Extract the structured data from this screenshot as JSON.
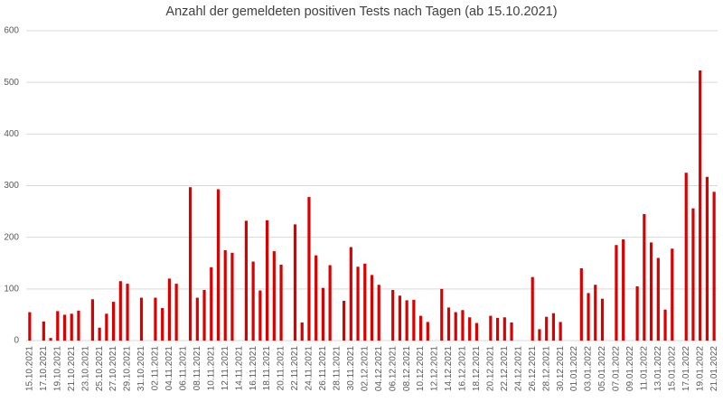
{
  "chart_data": {
    "type": "bar",
    "title": "Anzahl der gemeldeten positiven Tests nach Tagen (ab 15.10.2021)",
    "categories": [
      "15.10.2021",
      null,
      "17.10.2021",
      null,
      "19.10.2021",
      null,
      "21.10.2021",
      null,
      "23.10.2021",
      null,
      "25.10.2021",
      null,
      "27.10.2021",
      null,
      "29.10.2021",
      null,
      "31.10.2021",
      null,
      "02.11.2021",
      null,
      "04.11.2021",
      null,
      "06.11.2021",
      null,
      "08.11.2021",
      null,
      "10.11.2021",
      null,
      "12.11.2021",
      null,
      "14.11.2021",
      null,
      "16.11.2021",
      null,
      "18.11.2021",
      null,
      "20.11.2021",
      null,
      "22.11.2021",
      null,
      "24.11.2021",
      null,
      "26.11.2021",
      null,
      "28.11.2021",
      null,
      "30.11.2021",
      null,
      "02.12.2021",
      null,
      "04.12.2021",
      null,
      "06.12.2021",
      null,
      "08.12.2021",
      null,
      "10.12.2021",
      null,
      "12.12.2021",
      null,
      "14.12.2021",
      null,
      "16.12.2021",
      null,
      "18.12.2021",
      null,
      "20.12.2021",
      null,
      "22.12.2021",
      null,
      "24.12.2021",
      null,
      "26.12.2021",
      null,
      "28.12.2021",
      null,
      "30.12.2021",
      null,
      "01.01.2022",
      null,
      "03.01.2022",
      null,
      "05.01.2022",
      null,
      "07.01.2022",
      null,
      "09.01.2022",
      null,
      "11.01.2022",
      null,
      "13.01.2022",
      null,
      "15.01.2022",
      null,
      "17.01.2022",
      null,
      "19.01.2022",
      null,
      "21.01.2022"
    ],
    "values": [
      55,
      0,
      37,
      5,
      57,
      50,
      52,
      58,
      0,
      80,
      25,
      52,
      75,
      115,
      110,
      0,
      83,
      0,
      83,
      63,
      120,
      110,
      0,
      297,
      83,
      98,
      142,
      293,
      175,
      170,
      0,
      232,
      153,
      97,
      233,
      173,
      147,
      0,
      225,
      35,
      278,
      165,
      102,
      146,
      0,
      77,
      181,
      143,
      149,
      127,
      108,
      0,
      98,
      87,
      78,
      79,
      48,
      36,
      0,
      100,
      64,
      55,
      59,
      45,
      34,
      0,
      48,
      44,
      45,
      35,
      0,
      0,
      123,
      22,
      46,
      53,
      36,
      0,
      0,
      140,
      92,
      108,
      81,
      0,
      185,
      196,
      0,
      105,
      245,
      190,
      160,
      60,
      178,
      0,
      325,
      256,
      523,
      317,
      288
    ],
    "color": "#d90000",
    "ylim": [
      0,
      600
    ],
    "yticks": [
      0,
      100,
      200,
      300,
      400,
      500,
      600
    ],
    "grid": true
  }
}
